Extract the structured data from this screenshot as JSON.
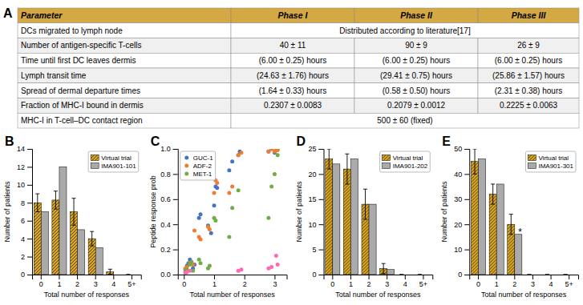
{
  "chart_data": [
    {
      "type": "table",
      "title": "A",
      "header": [
        "Parameter",
        "Phase I",
        "Phase II",
        "Phase III"
      ],
      "rows": [
        [
          "DCs migrated to lymph node",
          "Distributed according to literature[17]"
        ],
        [
          "Number of antigen-specific T-cells",
          "40 ± 11",
          "90 ± 9",
          "26 ± 9"
        ],
        [
          "Time until first DC leaves dermis",
          "(6.00 ± 0.25) hours",
          "(6.00 ± 0.25) hours",
          "(6.00 ± 0.25) hours"
        ],
        [
          "Lymph transit time",
          "(24.63 ± 1.76) hours",
          "(29.41 ± 0.75) hours",
          "(25.86 ± 1.57) hours"
        ],
        [
          "Spread of dermal departure times",
          "(1.64 ± 0.33) hours",
          "(0.58 ± 0.50) hours",
          "(2.31 ± 0.38) hours"
        ],
        [
          "Fraction of MHC-I bound in dermis",
          "0.2307 ± 0.0083",
          "0.2079 ± 0.0012",
          "0.2225 ± 0.0063"
        ],
        [
          "MHC-I in T-cell–DC contact region",
          "500 ± 60 (fixed)"
        ]
      ],
      "color": "#D4A843",
      "colors": [
        "#FFFFFF",
        "#F0F0F0",
        "#FFFFFF",
        "#F0F0F0",
        "#FFFFFF",
        "#F0F0F0",
        "#FFFFFF"
      ]
    },
    {
      "type": "bar",
      "title": "B",
      "categories": [
        "0",
        "1",
        "2",
        "3",
        "4",
        "5+"
      ],
      "series": [
        {
          "name": "Virtual trial",
          "color": "#DAA520",
          "values": [
            8,
            8.3,
            7,
            4,
            0.3,
            0
          ],
          "errors": [
            1.0,
            1.0,
            1.5,
            0.8,
            0.3,
            0
          ]
        },
        {
          "name": "IMA901-101",
          "color": "#AAAAAA",
          "values": [
            7,
            12,
            5,
            3,
            0,
            0
          ]
        }
      ],
      "xlabel": "Total number of responses",
      "ylabel": "Number of patients",
      "ylim": [
        0,
        14
      ],
      "yticks": [
        0,
        2,
        4,
        6,
        8,
        10,
        12,
        14
      ],
      "legend": "upper right"
    },
    {
      "type": "scatter",
      "title": "C",
      "series": [
        {
          "name": "GUC-1",
          "color": "#4472C4",
          "x": [
            0.05,
            0.1,
            0.15,
            0.2,
            0.3,
            0.35,
            0.5,
            0.55,
            0.8,
            0.9,
            1.0,
            1.05,
            1.1,
            1.5,
            1.6,
            1.8,
            1.85,
            2.8,
            2.9,
            3.0,
            3.05,
            3.1
          ],
          "values": [
            0.04,
            0.07,
            0.09,
            0.12,
            0.05,
            0.08,
            0.45,
            0.48,
            0.39,
            0.33,
            0.55,
            0.7,
            0.69,
            0.83,
            0.9,
            0.95,
            0.98,
            0.98,
            1.0,
            0.97,
            0.99,
            1.0
          ]
        },
        {
          "name": "ADF-2",
          "color": "#ED7D31",
          "x": [
            0.05,
            0.1,
            0.2,
            0.25,
            0.3,
            0.35,
            0.5,
            0.55,
            0.8,
            0.85,
            1.0,
            1.05,
            1.1,
            1.5,
            1.6,
            1.8,
            1.9,
            2.8,
            2.9,
            3.0,
            3.05,
            3.1
          ],
          "values": [
            0.05,
            0.06,
            0.09,
            0.1,
            0.08,
            0.35,
            0.3,
            0.28,
            0.38,
            0.36,
            0.65,
            0.75,
            0.73,
            0.65,
            0.7,
            0.95,
            0.97,
            0.98,
            1.0,
            0.98,
            1.0,
            0.99
          ]
        },
        {
          "name": "MET-1",
          "color": "#70AD47",
          "x": [
            0.05,
            0.1,
            0.2,
            0.25,
            0.3,
            0.5,
            0.55,
            0.8,
            0.85,
            1.0,
            1.05,
            1.5,
            1.6,
            1.8,
            2.8,
            2.9,
            3.0,
            3.1
          ],
          "values": [
            0.02,
            0.04,
            0.08,
            0.1,
            0.03,
            0.12,
            0.09,
            0.05,
            0.07,
            0.45,
            0.43,
            0.3,
            0.53,
            0.67,
            0.45,
            0.7,
            0.8,
            0.95
          ]
        },
        {
          "color": "#FF69B4",
          "x": [
            0.05,
            0.1,
            0.2,
            1.8,
            1.9,
            2.8,
            2.9,
            3.05,
            3.1
          ],
          "values": [
            0.01,
            0.02,
            0.03,
            0.03,
            0.04,
            0.05,
            0.06,
            0.15,
            0.08
          ]
        }
      ],
      "xlabel": "Total number of responses",
      "ylabel": "Peptide response prob",
      "xlim": [
        -0.2,
        3.4
      ],
      "xticks": [
        0,
        1,
        2,
        3
      ],
      "ylim": [
        0,
        1.0
      ],
      "yticks": [
        {
          "value": 0,
          "label": "0.0"
        },
        0.2,
        0.4,
        0.6,
        0.8,
        {
          "value": 1.0,
          "label": "1.0"
        }
      ],
      "legend": "upper left"
    },
    {
      "type": "bar",
      "title": "D",
      "categories": [
        "0",
        "1",
        "2",
        "3",
        "4",
        "5+"
      ],
      "series": [
        {
          "name": "Virtual trial",
          "color": "#DAA520",
          "values": [
            23,
            21,
            14,
            1.2,
            0,
            0
          ],
          "errors": [
            2.0,
            3.0,
            3.0,
            1.0,
            0,
            0
          ]
        },
        {
          "name": "IMA901-202",
          "color": "#AAAAAA",
          "values": [
            22,
            23,
            14,
            1,
            0,
            0
          ]
        }
      ],
      "xlabel": "Total number of responses",
      "ylabel": "Number of patients",
      "ylim": [
        0,
        25
      ],
      "yticks": [
        0,
        5,
        10,
        15,
        20,
        25
      ],
      "legend": "upper right"
    },
    {
      "type": "bar",
      "title": "E",
      "categories": [
        "0",
        "1",
        "2",
        "3",
        "4",
        "5+"
      ],
      "series": [
        {
          "name": "Virtual trial",
          "color": "#DAA520",
          "values": [
            45,
            32,
            20,
            0,
            0,
            0
          ],
          "errors": [
            5.0,
            4.0,
            4.0,
            0,
            0,
            0
          ]
        },
        {
          "name": "IMA901-301",
          "color": "#AAAAAA",
          "values": [
            46,
            36,
            16,
            0,
            0,
            0
          ]
        }
      ],
      "xlabel": "Total number of responses",
      "ylabel": "Number of patients",
      "ylim": [
        0,
        50
      ],
      "yticks": [
        0,
        10,
        20,
        30,
        40,
        50
      ],
      "legend": "upper right",
      "annotations": [
        {
          "text": "*",
          "category": "2",
          "y": 17
        }
      ]
    }
  ]
}
